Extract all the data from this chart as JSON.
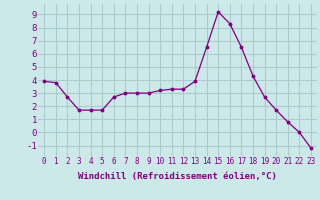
{
  "x": [
    0,
    1,
    2,
    3,
    4,
    5,
    6,
    7,
    8,
    9,
    10,
    11,
    12,
    13,
    14,
    15,
    16,
    17,
    18,
    19,
    20,
    21,
    22,
    23
  ],
  "y": [
    3.9,
    3.8,
    2.7,
    1.7,
    1.7,
    1.7,
    2.7,
    3.0,
    3.0,
    3.0,
    3.2,
    3.3,
    3.3,
    3.9,
    6.5,
    9.2,
    8.3,
    6.5,
    4.3,
    2.7,
    1.7,
    0.8,
    0.0,
    -1.2
  ],
  "line_color": "#800080",
  "marker_color": "#800080",
  "bg_color": "#cce8e8",
  "grid_color": "#aacccc",
  "xlabel": "Windchill (Refroidissement éolien,°C)",
  "xlim": [
    -0.5,
    23.5
  ],
  "ylim": [
    -1.8,
    9.8
  ],
  "yticks": [
    -1,
    0,
    1,
    2,
    3,
    4,
    5,
    6,
    7,
    8,
    9
  ],
  "xticks": [
    0,
    1,
    2,
    3,
    4,
    5,
    6,
    7,
    8,
    9,
    10,
    11,
    12,
    13,
    14,
    15,
    16,
    17,
    18,
    19,
    20,
    21,
    22,
    23
  ],
  "tick_color": "#800080",
  "font_family": "monospace",
  "xlabel_fontsize": 6.5,
  "xtick_fontsize": 5.5,
  "ytick_fontsize": 6.5
}
